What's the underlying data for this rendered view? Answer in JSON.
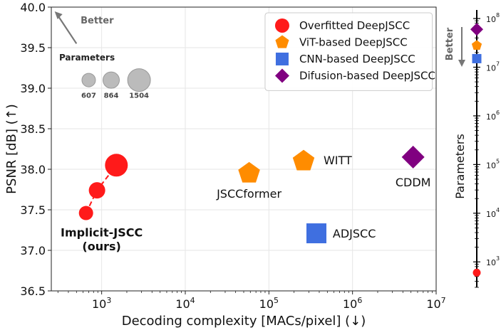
{
  "chart_data": [
    {
      "type": "scatter",
      "title": "",
      "xlabel": "Decoding complexity [MACs/pixel] (↓)",
      "ylabel": "PSNR [dB] (↑)",
      "xscale": "log",
      "xlim": [
        250,
        10000000
      ],
      "ylim": [
        36.5,
        40.0
      ],
      "grid": true,
      "xticks": [
        1000,
        10000,
        100000,
        1000000,
        10000000
      ],
      "xtick_labels": [
        {
          "base": "10",
          "exp": "3"
        },
        {
          "base": "10",
          "exp": "4"
        },
        {
          "base": "10",
          "exp": "5"
        },
        {
          "base": "10",
          "exp": "6"
        },
        {
          "base": "10",
          "exp": "7"
        }
      ],
      "yticks": [
        "36.5",
        "37.0",
        "37.5",
        "38.0",
        "38.5",
        "39.0",
        "39.5",
        "40.0"
      ],
      "legend_position": "top-right",
      "series": [
        {
          "name": "Overfitted DeepJSCC",
          "marker": "circle",
          "color": "#ff1a1a",
          "points": [
            {
              "x": 650,
              "y": 37.46,
              "params": 607
            },
            {
              "x": 880,
              "y": 37.74,
              "params": 864
            },
            {
              "x": 1500,
              "y": 38.05,
              "params": 1504
            }
          ]
        },
        {
          "name": "ViT-based DeepJSCC",
          "marker": "pentagon",
          "color": "#ff8c00",
          "points": [
            {
              "x": 58000,
              "y": 37.95,
              "label": "JSCCformer"
            },
            {
              "x": 260000,
              "y": 38.1,
              "label": "WITT"
            }
          ]
        },
        {
          "name": "CNN-based DeepJSCC",
          "marker": "square",
          "color": "#3f6fe0",
          "points": [
            {
              "x": 370000,
              "y": 37.21,
              "label": "ADJSCC"
            }
          ]
        },
        {
          "name": "Difusion-based DeepJSCC",
          "marker": "diamond",
          "color": "#800080",
          "points": [
            {
              "x": 5300000,
              "y": 38.15,
              "label": "CDDM"
            }
          ]
        }
      ],
      "annotations": {
        "ours_line1": "Implicit-JSCC",
        "ours_line2": "(ours)",
        "better": "Better",
        "size_legend_title": "Parameters",
        "size_legend": [
          "607",
          "864",
          "1504"
        ]
      }
    },
    {
      "type": "scatter",
      "title": "",
      "ylabel": "Parameters",
      "yscale": "log",
      "ylim": [
        300,
        150000000
      ],
      "yticks": [
        1000,
        10000,
        100000,
        1000000,
        10000000,
        100000000
      ],
      "ytick_labels": [
        {
          "base": "10",
          "exp": "3"
        },
        {
          "base": "10",
          "exp": "4"
        },
        {
          "base": "10",
          "exp": "5"
        },
        {
          "base": "10",
          "exp": "6"
        },
        {
          "base": "10",
          "exp": "7"
        },
        {
          "base": "10",
          "exp": "8"
        }
      ],
      "better": "Better",
      "points": [
        {
          "model": "Overfitted DeepJSCC",
          "marker": "circle",
          "color": "#ff1a1a",
          "value": 600
        },
        {
          "model": "Difusion-based DeepJSCC",
          "marker": "diamond",
          "color": "#800080",
          "value": 60000000
        },
        {
          "model": "ViT-based DeepJSCC",
          "marker": "pentagon",
          "color": "#ff8c00",
          "value": 28000000
        },
        {
          "model": "CNN-based DeepJSCC",
          "marker": "square",
          "color": "#3f6fe0",
          "value": 15000000
        }
      ]
    }
  ]
}
